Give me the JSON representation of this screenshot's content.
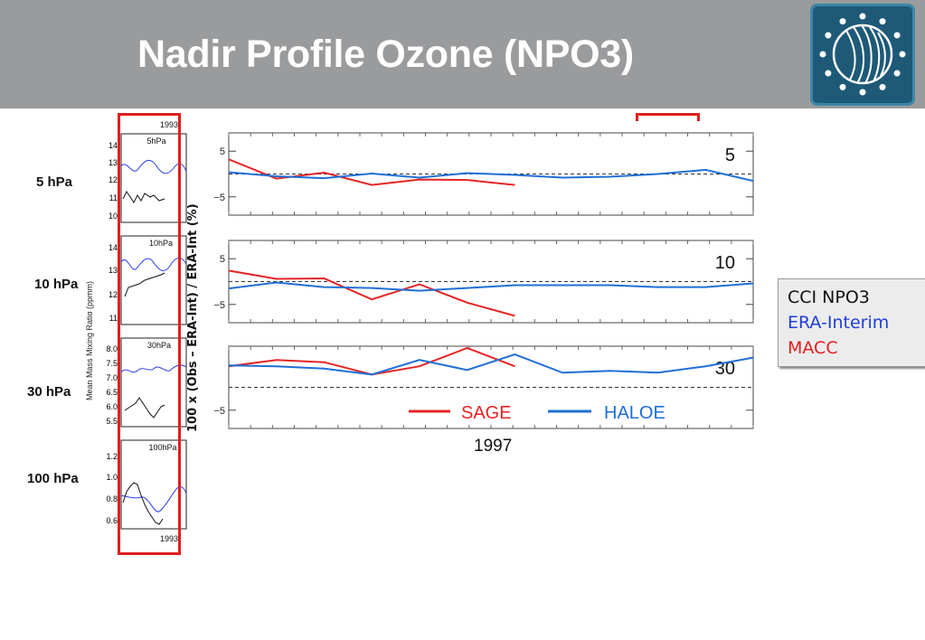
{
  "header": {
    "title": "Nadir Profile Ozone (NPO3)",
    "logo_icon": "esa-cci-globe-logo-icon"
  },
  "levels": {
    "p5": "5 hPa",
    "p10": "10 hPa",
    "p30": "30 hPa",
    "p100": "100 hPa"
  },
  "left_panels": {
    "year_top": "1993",
    "year_bottom": "1993",
    "axis_label": "Mean Mass Mixing Ratio (ppmm)",
    "panels": [
      {
        "label": "5hPa",
        "ticks": [
          "14",
          "13",
          "12",
          "11",
          "10"
        ]
      },
      {
        "label": "10hPa",
        "ticks": [
          "14",
          "13",
          "12",
          "11"
        ]
      },
      {
        "label": "30hPa",
        "ticks": [
          "8.0",
          "7.5",
          "7.0",
          "6.5",
          "6.0",
          "5.5"
        ]
      },
      {
        "label": "100hPa",
        "ticks": [
          "1.2",
          "1.0",
          "0.8",
          "0.6"
        ]
      }
    ]
  },
  "main_chart": {
    "ylabel": "100 x (Obs – ERA-Int) / ERA-Int (%)",
    "xlabel": "1997",
    "legend_sage": "SAGE",
    "legend_haloe": "HALOE",
    "colors": {
      "sage": "#e42525",
      "haloe": "#1f6fd6",
      "era": "#1f3fd6",
      "macc": "#e01e1e"
    }
  },
  "chart_data": [
    {
      "type": "line",
      "title": "5",
      "yticks": [
        "5",
        "−5"
      ],
      "ylim": [
        -9,
        9
      ],
      "x": [
        0,
        1,
        2,
        3,
        4,
        5,
        6,
        7,
        8,
        9,
        10,
        11
      ],
      "series": [
        {
          "name": "SAGE",
          "values": [
            3.2,
            -1.0,
            0.3,
            -2.4,
            -1.2,
            -1.3,
            -2.4,
            null,
            null,
            null,
            null,
            null
          ]
        },
        {
          "name": "HALOE",
          "values": [
            0.4,
            -0.5,
            -0.9,
            0.1,
            -0.8,
            0.2,
            -0.2,
            -0.8,
            -0.6,
            0.0,
            0.9,
            -1.5
          ]
        }
      ]
    },
    {
      "type": "line",
      "title": "10",
      "yticks": [
        "5",
        "−5"
      ],
      "ylim": [
        -9,
        9
      ],
      "x": [
        0,
        1,
        2,
        3,
        4,
        5,
        6,
        7,
        8,
        9,
        10,
        11
      ],
      "series": [
        {
          "name": "SAGE",
          "values": [
            2.4,
            0.6,
            0.7,
            -3.9,
            -0.6,
            -4.6,
            -7.5,
            null,
            null,
            null,
            null,
            null
          ]
        },
        {
          "name": "HALOE",
          "values": [
            -1.5,
            -0.2,
            -1.2,
            -1.4,
            -2.0,
            -1.4,
            -0.8,
            -0.8,
            -0.8,
            -1.2,
            -1.2,
            -0.4
          ]
        }
      ]
    },
    {
      "type": "line",
      "title": "30",
      "yticks": [
        "−5"
      ],
      "ylim": [
        -9,
        9
      ],
      "x": [
        0,
        1,
        2,
        3,
        4,
        5,
        6,
        7,
        8,
        9,
        10,
        11
      ],
      "series": [
        {
          "name": "SAGE",
          "values": [
            4.6,
            6.0,
            5.5,
            2.8,
            4.6,
            8.6,
            4.6,
            null,
            null,
            null,
            null,
            null
          ]
        },
        {
          "name": "HALOE",
          "values": [
            4.8,
            4.6,
            4.1,
            2.8,
            6.0,
            3.8,
            7.2,
            3.2,
            3.6,
            3.2,
            4.6,
            6.5
          ]
        }
      ]
    }
  ],
  "legend": {
    "cci": "CCI NPO3",
    "era": "ERA-Interim",
    "macc": "MACC"
  }
}
